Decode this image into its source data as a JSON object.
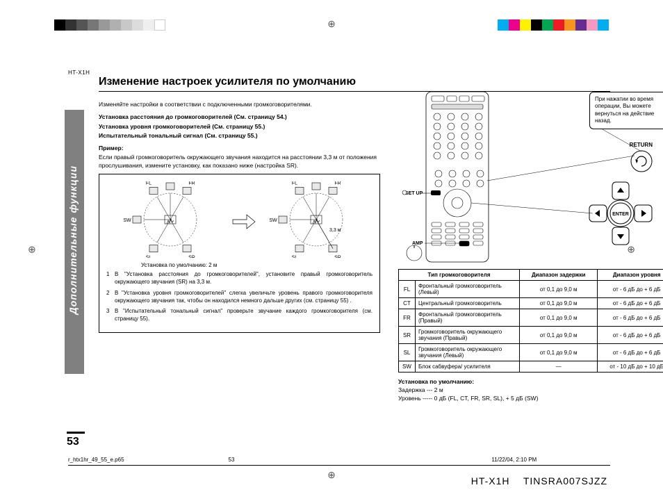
{
  "print": {
    "swatches_left": [
      "#000000",
      "#333333",
      "#555555",
      "#777777",
      "#999999",
      "#b0b0b0",
      "#c8c8c8",
      "#dcdcdc",
      "#eeeeee",
      "#ffffff"
    ],
    "swatches_right": [
      "#00aeef",
      "#ec008c",
      "#fff200",
      "#000000",
      "#00a651",
      "#ed1c24",
      "#f7941d",
      "#662d91",
      "#f49ac1",
      "#00adee"
    ],
    "reg_glyph": "⊕"
  },
  "header": {
    "model": "HT-X1H"
  },
  "title": "Изменение настроек усилителя по умолчанию",
  "sidebar": {
    "label": "Дополнительные функции",
    "bg": "#808080"
  },
  "page_number": "53",
  "intro": "Изменяйте настройки в соответствии с подключенными громкоговорителями.",
  "refs": [
    "Установка расстояния до громкоговорителей (См. страницу 54.)",
    "Установка уровня громкоговорителей (См. страницу 55.)",
    "Испытательный тональный сигнал (См. страницу 55.)"
  ],
  "example": {
    "heading": "Пример:",
    "text": "Если правый громкоговоритель окружающего звучания находится на расстоянии 3,3 м от положения прослушивания, измените установку, как показано ниже (настройка SR)."
  },
  "diagram": {
    "speakers": [
      "FL",
      "CT",
      "FR",
      "SW",
      "SL",
      "SR"
    ],
    "default_caption": "Установка по умолчанию: 2 м",
    "changed_value": "3,3 м"
  },
  "steps": [
    "В \"Установка расстояния до громкоговорителей\", установите правый громкоговоритель окружающего звучания (SR) на 3,3 м.",
    "В \"Установка уровня громкоговорителей\" слегка увеличьте уровень правого громкоговорителя окружающего звучания так, чтобы он находился немного дальше других (см. страницу 55) .",
    "В \"Испытательный тональный сигнал\" проверьте звучание каждого громкоговорителя (см. страницу 55)."
  ],
  "callout": "При нажатии во время операции, Вы можете вернуться на действие назад.",
  "remote": {
    "return_label": "RETURN",
    "setup_label": "SET UP",
    "amp_label": "AMP",
    "enter_label": "ENTER"
  },
  "table": {
    "headers": [
      "Тип громкоговорителя",
      "Диапазон задержки",
      "Диапазон уровня"
    ],
    "rows": [
      {
        "code": "FL",
        "name": "Фронтальный громкоговоритель (Левый)",
        "delay": "от 0,1 до 9,0 м",
        "level": "от - 6 дБ до + 6 дБ"
      },
      {
        "code": "CT",
        "name": "Центральный громкоговоритель",
        "delay": "от 0,1 до 9,0 м",
        "level": "от - 6 дБ до + 6 дБ"
      },
      {
        "code": "FR",
        "name": "Фронтальный громкоговоритель (Правый)",
        "delay": "от 0,1 до 9,0 м",
        "level": "от - 6 дБ до + 6 дБ"
      },
      {
        "code": "SR",
        "name": "Громкоговоритель окружающего звучания (Правый)",
        "delay": "от 0,1 до 9,0 м",
        "level": "от - 6 дБ до + 6 дБ"
      },
      {
        "code": "SL",
        "name": "Громкоговоритель окружающего звучания (Левый)",
        "delay": "от 0,1 до 9,0 м",
        "level": "от - 6 дБ до + 6 дБ"
      },
      {
        "code": "SW",
        "name": "Блок сабвуфера/ усилителя",
        "delay": "—",
        "level": "от - 10 дБ до + 10 дБ"
      }
    ]
  },
  "defaults": {
    "heading": "Установка по умолчанию:",
    "delay": "Задержка --- 2 м",
    "level": "Уровень ----- 0 дБ (FL, CT, FR, SR, SL), + 5 дБ (SW)"
  },
  "footer": {
    "file": "r_htx1hr_49_55_e.p65",
    "pg": "53",
    "date": "11/22/04, 2:10 PM"
  },
  "codes": {
    "model": "HT-X1H",
    "part": "TINSRA007SJZZ"
  }
}
